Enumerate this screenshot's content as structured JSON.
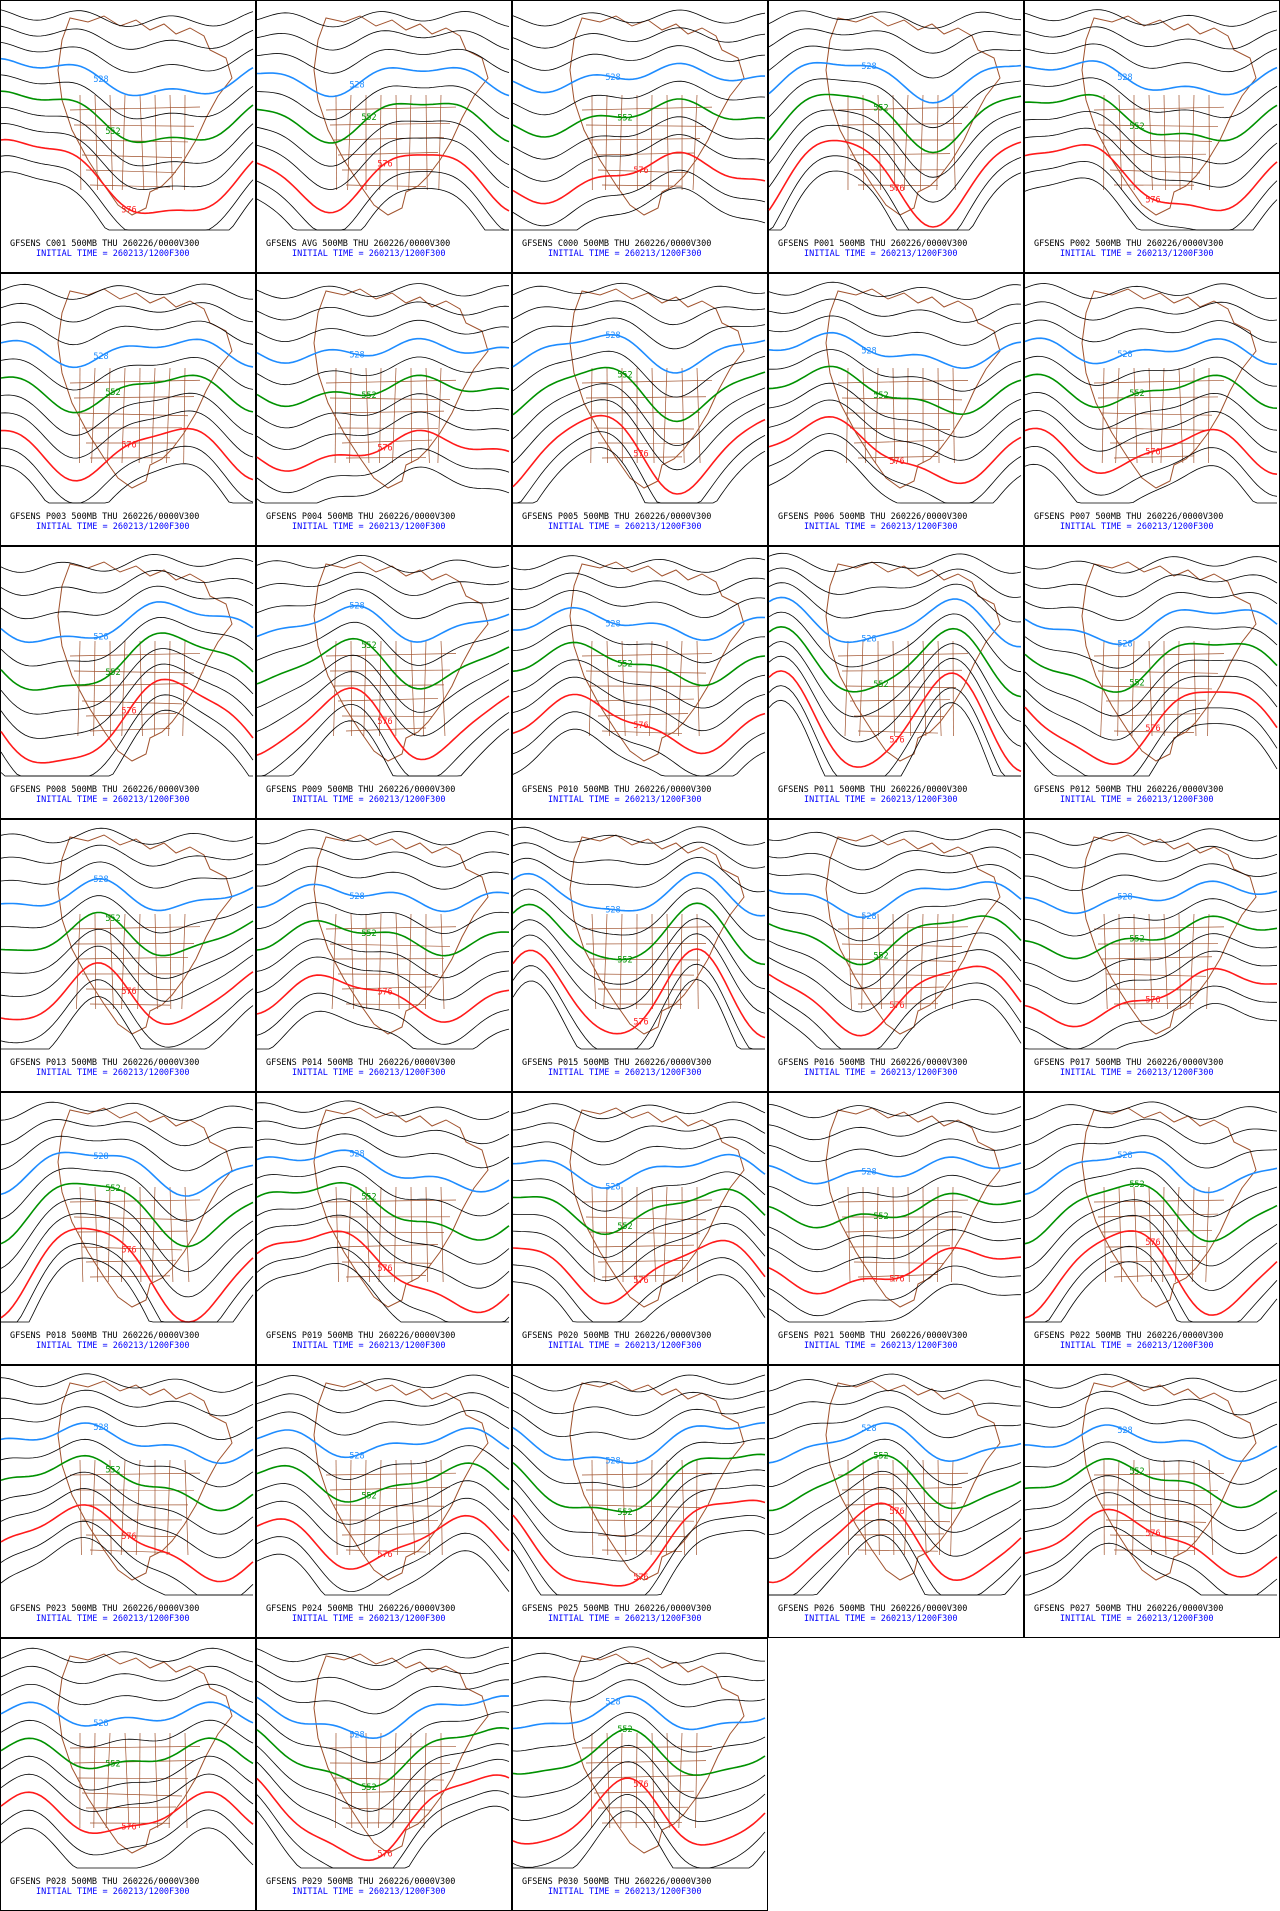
{
  "contour_colors": [
    "#1e8cff",
    "#009100",
    "#ff1a1a"
  ],
  "panels": [
    {
      "title": "GFSENS C001 500MB THU 260226/0000V300",
      "init": "INITIAL TIME = 260213/1200F300",
      "contour_labels": [
        528,
        552,
        576
      ]
    },
    {
      "title": "GFSENS AVG 500MB THU 260226/0000V300",
      "init": "INITIAL TIME = 260213/1200F300",
      "contour_labels": [
        528,
        552,
        576
      ]
    },
    {
      "title": "GFSENS C000 500MB THU 260226/0000V300",
      "init": "INITIAL TIME = 260213/1200F300",
      "contour_labels": [
        528,
        552,
        576
      ]
    },
    {
      "title": "GFSENS P001 500MB THU 260226/0000V300",
      "init": "INITIAL TIME = 260213/1200F300",
      "contour_labels": [
        528,
        552,
        576
      ]
    },
    {
      "title": "GFSENS P002 500MB THU 260226/0000V300",
      "init": "INITIAL TIME = 260213/1200F300",
      "contour_labels": [
        528,
        552,
        576
      ]
    },
    {
      "title": "GFSENS P003 500MB THU 260226/0000V300",
      "init": "INITIAL TIME = 260213/1200F300",
      "contour_labels": [
        528,
        552,
        576
      ]
    },
    {
      "title": "GFSENS P004 500MB THU 260226/0000V300",
      "init": "INITIAL TIME = 260213/1200F300",
      "contour_labels": [
        528,
        552,
        576
      ]
    },
    {
      "title": "GFSENS P005 500MB THU 260226/0000V300",
      "init": "INITIAL TIME = 260213/1200F300",
      "contour_labels": [
        528,
        552,
        576
      ]
    },
    {
      "title": "GFSENS P006 500MB THU 260226/0000V300",
      "init": "INITIAL TIME = 260213/1200F300",
      "contour_labels": [
        528,
        552,
        576
      ]
    },
    {
      "title": "GFSENS P007 500MB THU 260226/0000V300",
      "init": "INITIAL TIME = 260213/1200F300",
      "contour_labels": [
        528,
        552,
        576
      ]
    },
    {
      "title": "GFSENS P008 500MB THU 260226/0000V300",
      "init": "INITIAL TIME = 260213/1200F300",
      "contour_labels": [
        528,
        552,
        576
      ]
    },
    {
      "title": "GFSENS P009 500MB THU 260226/0000V300",
      "init": "INITIAL TIME = 260213/1200F300",
      "contour_labels": [
        528,
        552,
        576
      ]
    },
    {
      "title": "GFSENS P010 500MB THU 260226/0000V300",
      "init": "INITIAL TIME = 260213/1200F300",
      "contour_labels": [
        528,
        552,
        576
      ]
    },
    {
      "title": "GFSENS P011 500MB THU 260226/0000V300",
      "init": "INITIAL TIME = 260213/1200F300",
      "contour_labels": [
        528,
        552,
        576
      ]
    },
    {
      "title": "GFSENS P012 500MB THU 260226/0000V300",
      "init": "INITIAL TIME = 260213/1200F300",
      "contour_labels": [
        528,
        552,
        576
      ]
    },
    {
      "title": "GFSENS P013 500MB THU 260226/0000V300",
      "init": "INITIAL TIME = 260213/1200F300",
      "contour_labels": [
        528,
        552,
        576
      ]
    },
    {
      "title": "GFSENS P014 500MB THU 260226/0000V300",
      "init": "INITIAL TIME = 260213/1200F300",
      "contour_labels": [
        528,
        552,
        576
      ]
    },
    {
      "title": "GFSENS P015 500MB THU 260226/0000V300",
      "init": "INITIAL TIME = 260213/1200F300",
      "contour_labels": [
        528,
        552,
        576
      ]
    },
    {
      "title": "GFSENS P016 500MB THU 260226/0000V300",
      "init": "INITIAL TIME = 260213/1200F300",
      "contour_labels": [
        528,
        552,
        576
      ]
    },
    {
      "title": "GFSENS P017 500MB THU 260226/0000V300",
      "init": "INITIAL TIME = 260213/1200F300",
      "contour_labels": [
        528,
        552,
        576
      ]
    },
    {
      "title": "GFSENS P018 500MB THU 260226/0000V300",
      "init": "INITIAL TIME = 260213/1200F300",
      "contour_labels": [
        528,
        552,
        576
      ]
    },
    {
      "title": "GFSENS P019 500MB THU 260226/0000V300",
      "init": "INITIAL TIME = 260213/1200F300",
      "contour_labels": [
        528,
        552,
        576
      ]
    },
    {
      "title": "GFSENS P020 500MB THU 260226/0000V300",
      "init": "INITIAL TIME = 260213/1200F300",
      "contour_labels": [
        528,
        552,
        576
      ]
    },
    {
      "title": "GFSENS P021 500MB THU 260226/0000V300",
      "init": "INITIAL TIME = 260213/1200F300",
      "contour_labels": [
        528,
        552,
        576
      ]
    },
    {
      "title": "GFSENS P022 500MB THU 260226/0000V300",
      "init": "INITIAL TIME = 260213/1200F300",
      "contour_labels": [
        528,
        552,
        576
      ]
    },
    {
      "title": "GFSENS P023 500MB THU 260226/0000V300",
      "init": "INITIAL TIME = 260213/1200F300",
      "contour_labels": [
        528,
        552,
        576
      ]
    },
    {
      "title": "GFSENS P024 500MB THU 260226/0000V300",
      "init": "INITIAL TIME = 260213/1200F300",
      "contour_labels": [
        528,
        552,
        576
      ]
    },
    {
      "title": "GFSENS P025 500MB THU 260226/0000V300",
      "init": "INITIAL TIME = 260213/1200F300",
      "contour_labels": [
        528,
        552,
        576
      ]
    },
    {
      "title": "GFSENS P026 500MB THU 260226/0000V300",
      "init": "INITIAL TIME = 260213/1200F300",
      "contour_labels": [
        528,
        552,
        576
      ]
    },
    {
      "title": "GFSENS P027 500MB THU 260226/0000V300",
      "init": "INITIAL TIME = 260213/1200F300",
      "contour_labels": [
        528,
        552,
        576
      ]
    },
    {
      "title": "GFSENS P028 500MB THU 260226/0000V300",
      "init": "INITIAL TIME = 260213/1200F300",
      "contour_labels": [
        528,
        552,
        576
      ]
    },
    {
      "title": "GFSENS P029 500MB THU 260226/0000V300",
      "init": "INITIAL TIME = 260213/1200F300",
      "contour_labels": [
        528,
        552,
        576
      ]
    },
    {
      "title": "GFSENS P030 500MB THU 260226/0000V300",
      "init": "INITIAL TIME = 260213/1200F300",
      "contour_labels": [
        528,
        552,
        576
      ]
    }
  ]
}
